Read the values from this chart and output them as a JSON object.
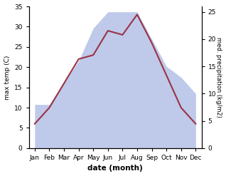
{
  "months": [
    "Jan",
    "Feb",
    "Mar",
    "Apr",
    "May",
    "Jun",
    "Jul",
    "Aug",
    "Sep",
    "Oct",
    "Nov",
    "Dec"
  ],
  "temperature": [
    6,
    10,
    16,
    22,
    23,
    29,
    28,
    33,
    26,
    18,
    10,
    6
  ],
  "precipitation": [
    8,
    8,
    12,
    16,
    22,
    25,
    25,
    25,
    20,
    15,
    13,
    10
  ],
  "temp_color": "#993344",
  "precip_color": "#b8c4e8",
  "temp_ylim": [
    0,
    35
  ],
  "precip_ylim": [
    0,
    26
  ],
  "temp_yticks": [
    0,
    5,
    10,
    15,
    20,
    25,
    30,
    35
  ],
  "precip_yticks": [
    0,
    5,
    10,
    15,
    20,
    25
  ],
  "xlabel": "date (month)",
  "ylabel_left": "max temp (C)",
  "ylabel_right": "med. precipitation (kg/m2)",
  "bg_color": "#ffffff"
}
